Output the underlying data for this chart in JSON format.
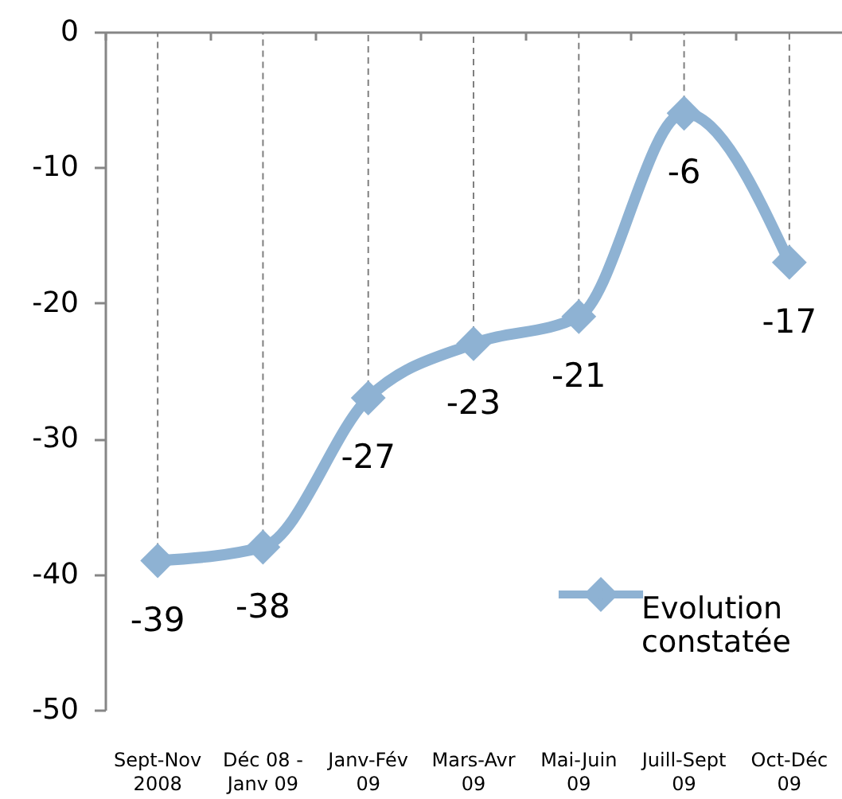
{
  "chart_data": {
    "type": "line",
    "categories": [
      "Sept-Nov\n2008",
      "Déc 08 -\nJanv 09",
      "Janv-Fév\n09",
      "Mars-Avr\n09",
      "Mai-Juin\n09",
      "Juill-Sept\n09",
      "Oct-Déc\n09"
    ],
    "series": [
      {
        "name": "Evolution constatée",
        "color": "#8eb2d3",
        "values": [
          -39,
          -38,
          -27,
          -23,
          -21,
          -6,
          -17
        ]
      }
    ],
    "ylim": [
      -50,
      0
    ],
    "yticks": [
      -50,
      -40,
      -30,
      -20,
      -10,
      0
    ],
    "grid": "x",
    "legend": "bottom right",
    "marker": "diamond",
    "line_style": "solid",
    "data_labels": true
  }
}
